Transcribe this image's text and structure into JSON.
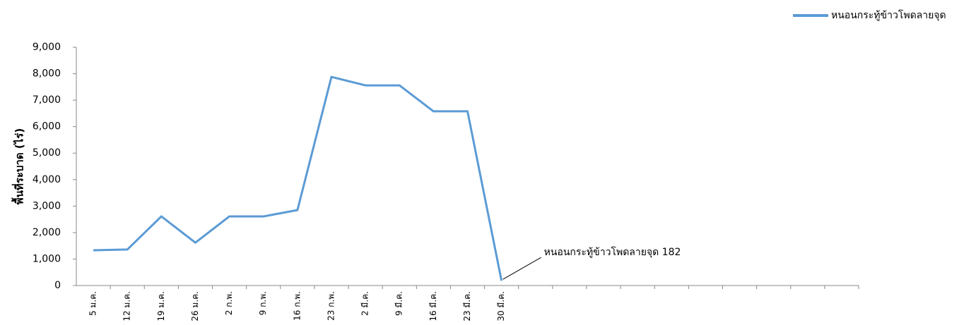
{
  "chart_data": {
    "type": "line",
    "y_label": "พื้นที่ระบาด (ไร่)",
    "categories": [
      "5 ม.ค.",
      "12 ม.ค.",
      "19 ม.ค.",
      "26 ม.ค.",
      "2 ก.พ.",
      "9 ก.พ.",
      "16 ก.พ.",
      "23 ก.พ.",
      "2 มี.ค.",
      "9 มี.ค.",
      "16 มี.ค.",
      "23 มี.ค.",
      "30 มี.ค.",
      null,
      null,
      null,
      null,
      null,
      null,
      null,
      null,
      null,
      null
    ],
    "series": [
      {
        "name": "หนอนกระทู้ข้าวโพดลายจุด",
        "color": "#5b9bd5",
        "values": [
          1330,
          1360,
          2610,
          1620,
          2610,
          2610,
          2850,
          7880,
          7560,
          7560,
          6580,
          6580,
          182,
          null,
          null,
          null,
          null,
          null,
          null,
          null,
          null,
          null,
          null
        ],
        "value_labels": [
          null,
          null,
          null,
          null,
          null,
          null,
          null,
          null,
          null,
          null,
          null,
          null,
          "หนอนกระทู้ข้าวโพดลายจุด 182",
          null,
          null,
          null,
          null,
          null,
          null,
          null,
          null,
          null,
          null
        ]
      }
    ],
    "ylim": [
      0,
      9000
    ],
    "yticks": [
      0,
      {
        "value": 1000,
        "label": "1,000"
      },
      {
        "value": 2000,
        "label": "2,000"
      },
      {
        "value": 3000,
        "label": "3,000"
      },
      {
        "value": 4000,
        "label": "4,000"
      },
      {
        "value": 5000,
        "label": "5,000"
      },
      {
        "value": 6000,
        "label": "6,000"
      },
      {
        "value": 7000,
        "label": "7,000"
      },
      {
        "value": 8000,
        "label": "8,000"
      },
      {
        "value": 9000,
        "label": "9,000"
      }
    ],
    "grid": false,
    "legend": "top-right"
  }
}
